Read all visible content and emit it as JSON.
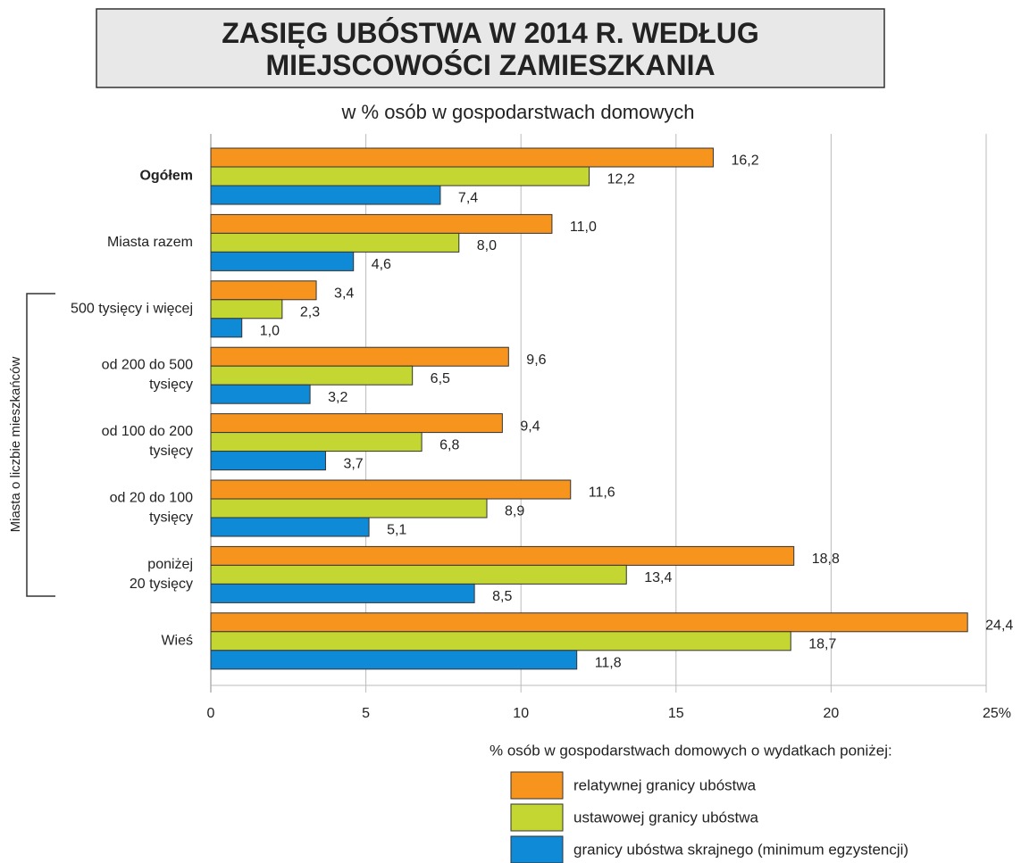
{
  "chart_data": {
    "type": "bar",
    "orientation": "horizontal",
    "title": "ZASIĘG UBÓSTWA W 2014 R. WEDŁUG\nMIEJSCOWOŚCI ZAMIESZKANIA",
    "subtitle": "w % osób w gospodarstwach domowych",
    "categories": [
      "Ogółem",
      "Miasta razem",
      "500 tysięcy i więcej",
      "od 200 do 500\ntysięcy",
      "od 100 do 200\ntysięcy",
      "od 20 do 100\ntysięcy",
      "poniżej\n20 tysięcy",
      "Wieś"
    ],
    "group_annotation": "Miasta o liczbie mieszkańców",
    "legend_title": "% osób w gospodarstwach domowych o wydatkach poniżej:",
    "series": [
      {
        "name": "relatywnej granicy ubóstwa",
        "color": "#f7941d",
        "values": [
          16.2,
          11.0,
          3.4,
          9.6,
          9.4,
          11.6,
          18.8,
          24.4
        ],
        "value_labels": [
          "16,2",
          "11,0",
          "3,4",
          "9,6",
          "9,4",
          "11,6",
          "18,8",
          "24,4"
        ]
      },
      {
        "name": "ustawowej granicy ubóstwa",
        "color": "#c3d631",
        "values": [
          12.2,
          8.0,
          2.3,
          6.5,
          6.8,
          8.9,
          13.4,
          18.7
        ],
        "value_labels": [
          "12,2",
          "8,0",
          "2,3",
          "6,5",
          "6,8",
          "8,9",
          "13,4",
          "18,7"
        ]
      },
      {
        "name": "granicy ubóstwa skrajnego (minimum egzystencji)",
        "color": "#0f8ad6",
        "values": [
          7.4,
          4.6,
          1.0,
          3.2,
          3.7,
          5.1,
          8.5,
          11.8
        ],
        "value_labels": [
          "7,4",
          "4,6",
          "1,0",
          "3,2",
          "3,7",
          "5,1",
          "8,5",
          "11,8"
        ]
      }
    ],
    "xlim": [
      0,
      25
    ],
    "xticks": [
      0,
      5,
      10,
      15,
      20,
      {
        "value": 25,
        "label": "25%"
      }
    ],
    "grid": true
  }
}
